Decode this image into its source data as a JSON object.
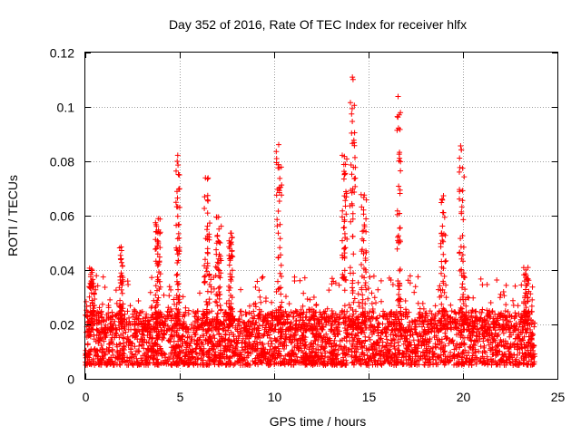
{
  "chart_data": {
    "type": "scatter",
    "title": "Day 352 of 2016, Rate Of TEC Index for receiver hlfx",
    "xlabel": "GPS time / hours",
    "ylabel": "ROTI / TECUs",
    "xlim": [
      0,
      25
    ],
    "ylim": [
      0,
      0.12
    ],
    "x_ticks": [
      0,
      5,
      10,
      15,
      20,
      25
    ],
    "x_tick_labels": [
      "0",
      "5",
      "10",
      "15",
      "20",
      "25"
    ],
    "y_ticks": [
      0,
      0.02,
      0.04,
      0.06,
      0.08,
      0.1,
      0.12
    ],
    "y_tick_labels": [
      "0",
      "0.02",
      "0.04",
      "0.06",
      "0.08",
      "0.1",
      "0.12"
    ],
    "grid": true,
    "marker": "+",
    "series": [
      {
        "name": "ROTI",
        "color": "#ff0000",
        "x_range": [
          0,
          23.8
        ],
        "typical_range": [
          0.005,
          0.025
        ],
        "bursts": [
          {
            "x": [
              0.2,
              0.5
            ],
            "peak": 0.041
          },
          {
            "x": [
              1.8,
              2.0
            ],
            "peak": 0.049
          },
          {
            "x": [
              3.7,
              4.0
            ],
            "peak": 0.059
          },
          {
            "x": [
              4.8,
              5.0
            ],
            "peak": 0.083
          },
          {
            "x": [
              6.3,
              6.6
            ],
            "peak": 0.075
          },
          {
            "x": [
              6.9,
              7.2
            ],
            "peak": 0.06
          },
          {
            "x": [
              7.6,
              7.8
            ],
            "peak": 0.054
          },
          {
            "x": [
              10.1,
              10.4
            ],
            "peak": 0.087
          },
          {
            "x": [
              13.6,
              13.9
            ],
            "peak": 0.083
          },
          {
            "x": [
              14.0,
              14.3
            ],
            "peak": 0.111
          },
          {
            "x": [
              14.6,
              14.9
            ],
            "peak": 0.068
          },
          {
            "x": [
              16.5,
              16.7
            ],
            "peak": 0.104
          },
          {
            "x": [
              18.8,
              19.1
            ],
            "peak": 0.068
          },
          {
            "x": [
              19.8,
              20.1
            ],
            "peak": 0.086
          },
          {
            "x": [
              23.2,
              23.5
            ],
            "peak": 0.041
          }
        ]
      }
    ]
  }
}
